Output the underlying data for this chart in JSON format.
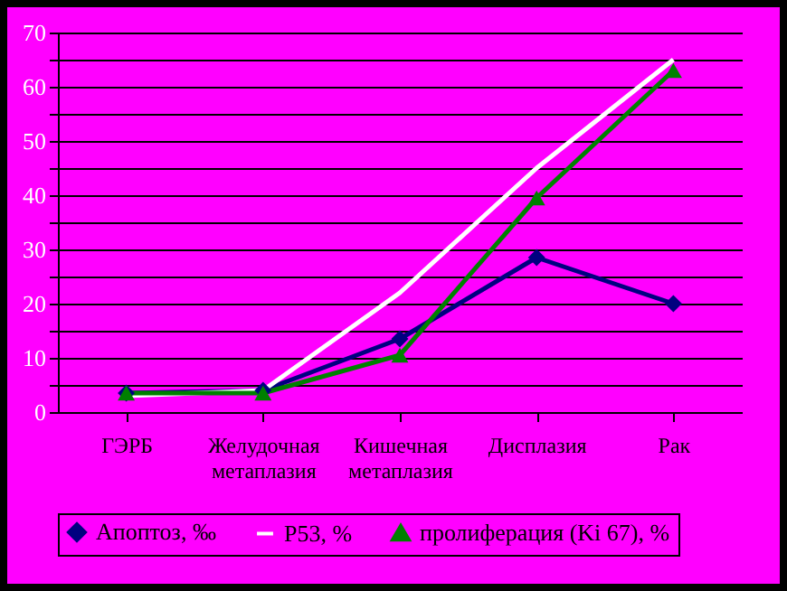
{
  "chart_data": {
    "type": "line",
    "categories": [
      "ГЭРБ",
      "Желудочная метаплазия",
      "Кишечная метаплазия",
      "Дисплазия",
      "Рак"
    ],
    "series": [
      {
        "name": "Апоптоз, ‰",
        "color": "#000080",
        "marker": "diamond",
        "values": [
          3.5,
          4,
          13.5,
          28.5,
          20
        ]
      },
      {
        "name": "P53, %",
        "color": "#ffffff",
        "marker": "none",
        "values": [
          3,
          4,
          22,
          45,
          65
        ]
      },
      {
        "name": "пролиферация (Ki 67), %",
        "color": "#008000",
        "marker": "triangle",
        "values": [
          3.5,
          3.5,
          10.5,
          39.5,
          63
        ]
      }
    ],
    "ylim": [
      0,
      70
    ],
    "yticks": [
      0,
      {
        "value": 5,
        "label": null
      },
      10,
      {
        "value": 15,
        "label": null
      },
      20,
      {
        "value": 25,
        "label": null
      },
      30,
      {
        "value": 35,
        "label": null
      },
      40,
      {
        "value": 45,
        "label": null
      },
      50,
      {
        "value": 55,
        "label": null
      },
      60,
      {
        "value": 65,
        "label": null
      },
      70
    ],
    "grid": "y",
    "legend": "bottom"
  }
}
